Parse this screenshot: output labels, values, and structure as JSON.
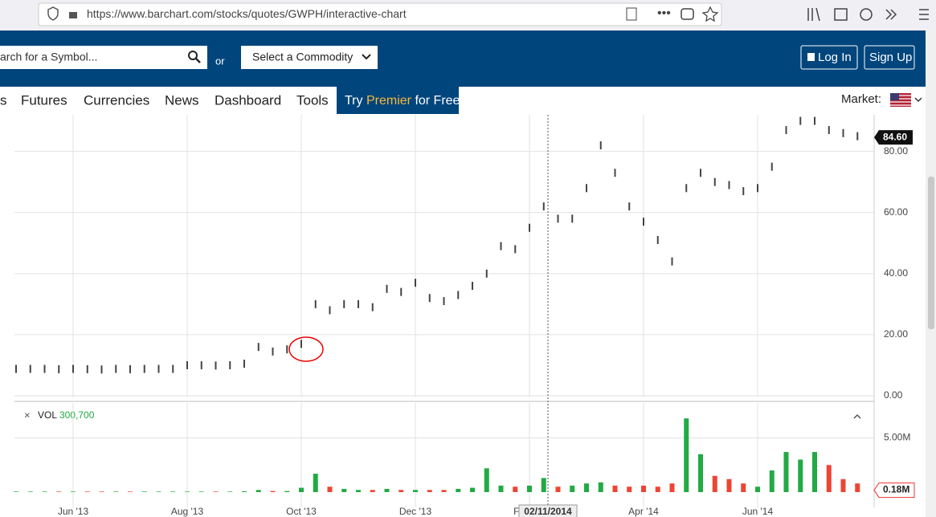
{
  "browser": {
    "url": "https://www.barchart.com/stocks/quotes/GWPH/interactive-chart"
  },
  "header": {
    "search_placeholder": "arch for a Symbol...",
    "or": "or",
    "commodity": "Select a Commodity",
    "login": "Log In",
    "signup": "Sign Up"
  },
  "nav": {
    "items": [
      "s",
      "Futures",
      "Currencies",
      "News",
      "Dashboard",
      "Tools"
    ],
    "premier": [
      "Try",
      "Premier",
      "for Free"
    ],
    "market": "Market:"
  },
  "chart_data": [
    {
      "type": "ohlc",
      "color": "#444444",
      "categories": [
        null,
        null,
        null,
        null,
        "Jun '13",
        null,
        null,
        null,
        null,
        null,
        null,
        null,
        "Aug '13",
        null,
        null,
        null,
        null,
        null,
        null,
        null,
        "Oct '13",
        null,
        null,
        null,
        null,
        null,
        null,
        null,
        "Dec '13",
        null,
        null,
        null,
        null,
        null,
        null,
        null,
        "Feb '14",
        null,
        null,
        null,
        null,
        null,
        null,
        null,
        "Apr '14",
        null,
        null,
        null,
        null,
        null,
        null,
        null,
        "Jun '14",
        null,
        null,
        null,
        null,
        null,
        null,
        null
      ],
      "values": [
        8.8,
        8.8,
        8.8,
        8.7,
        8.8,
        8.7,
        8.6,
        8.8,
        8.7,
        8.8,
        8.8,
        8.8,
        10,
        10,
        9.9,
        10,
        10.5,
        16,
        14.5,
        15.2,
        17,
        30,
        28,
        30,
        30,
        29,
        35,
        34,
        37,
        32,
        31,
        33,
        36,
        40,
        49,
        48,
        55,
        62,
        58,
        58,
        68,
        82,
        73,
        62,
        57,
        51,
        44,
        68,
        73,
        70,
        69,
        67,
        68,
        75,
        87,
        90,
        90,
        87,
        86,
        85
      ],
      "ylim": [
        0,
        92
      ],
      "yticks": [
        {
          "value": 0,
          "label": "0.00"
        },
        {
          "value": 20,
          "label": "20.00"
        },
        {
          "value": 40,
          "label": "40.00"
        },
        {
          "value": 60,
          "label": "60.00"
        },
        {
          "value": 80,
          "label": "80.00"
        }
      ],
      "last": {
        "value": 84.6,
        "label": "84.60"
      },
      "cursor_label": "02/11/2014",
      "grid": true
    },
    {
      "type": "volume",
      "title": "VOL",
      "subtitle": "300,700",
      "up_color": "#22aa44",
      "down_color": "#ee4433",
      "values": [
        50000,
        50000,
        50000,
        50000,
        50000,
        50000,
        50000,
        50000,
        50000,
        50000,
        50000,
        50000,
        50000,
        50000,
        50000,
        50000,
        80000,
        200000,
        100000,
        100000,
        400000,
        1700000,
        500000,
        300000,
        200000,
        200000,
        300000,
        200000,
        200000,
        200000,
        200000,
        300000,
        400000,
        2200000,
        600000,
        500000,
        600000,
        1300000,
        500000,
        600000,
        800000,
        900000,
        600000,
        500000,
        600000,
        500000,
        800000,
        6800000,
        3500000,
        1500000,
        1200000,
        800000,
        500000,
        2000000,
        3700000,
        3000000,
        3700000,
        2500000,
        1200000,
        800000
      ],
      "ylim": [
        0,
        8000000
      ],
      "yticks": [
        {
          "value": 5000000,
          "label": "5.00M"
        }
      ],
      "last": {
        "value": 180000,
        "label": "0.18M"
      },
      "grid": true
    }
  ]
}
